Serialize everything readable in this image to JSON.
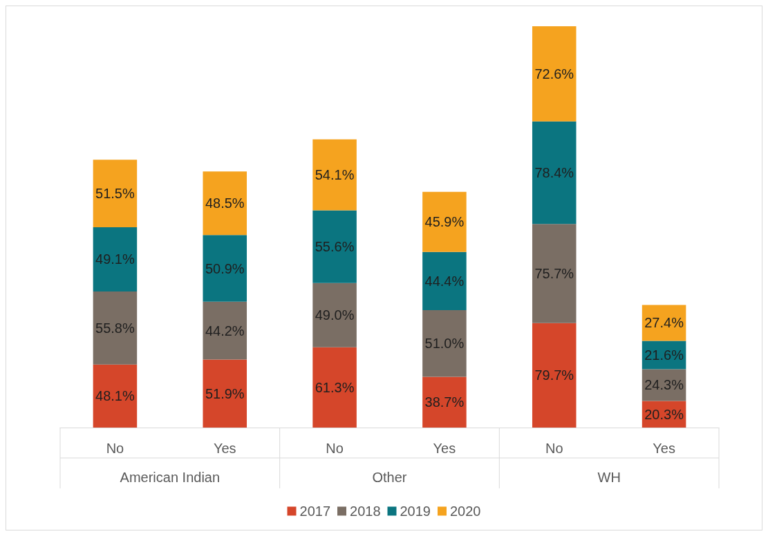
{
  "chart_data": {
    "type": "bar",
    "stacked": true,
    "legend": "bottom",
    "tick_labels": "x",
    "categories": [
      "No",
      "Yes",
      "No",
      "Yes",
      "No",
      "Yes"
    ],
    "annotations": [
      "American Indian",
      "Other",
      "WH"
    ],
    "series": [
      {
        "name": "2017",
        "color": "#d5462a",
        "values": [
          48.1,
          51.9,
          61.3,
          38.7,
          79.7,
          20.3
        ],
        "value_labels": [
          "48.1%",
          "51.9%",
          "61.3%",
          "38.7%",
          "79.7%",
          "20.3%"
        ]
      },
      {
        "name": "2018",
        "color": "#7a6e64",
        "values": [
          55.8,
          44.2,
          49.0,
          51.0,
          75.7,
          24.3
        ],
        "value_labels": [
          "55.8%",
          "44.2%",
          "49.0%",
          "51.0%",
          "75.7%",
          "24.3%"
        ]
      },
      {
        "name": "2019",
        "color": "#0b7580",
        "values": [
          49.1,
          50.9,
          55.6,
          44.4,
          78.4,
          21.6
        ],
        "value_labels": [
          "49.1%",
          "50.9%",
          "55.6%",
          "44.4%",
          "78.4%",
          "21.6%"
        ]
      },
      {
        "name": "2020",
        "color": "#f5a31f",
        "values": [
          51.5,
          48.5,
          54.1,
          45.9,
          72.6,
          27.4
        ],
        "value_labels": [
          "51.5%",
          "48.5%",
          "54.1%",
          "45.9%",
          "72.6%",
          "27.4%"
        ]
      }
    ]
  }
}
